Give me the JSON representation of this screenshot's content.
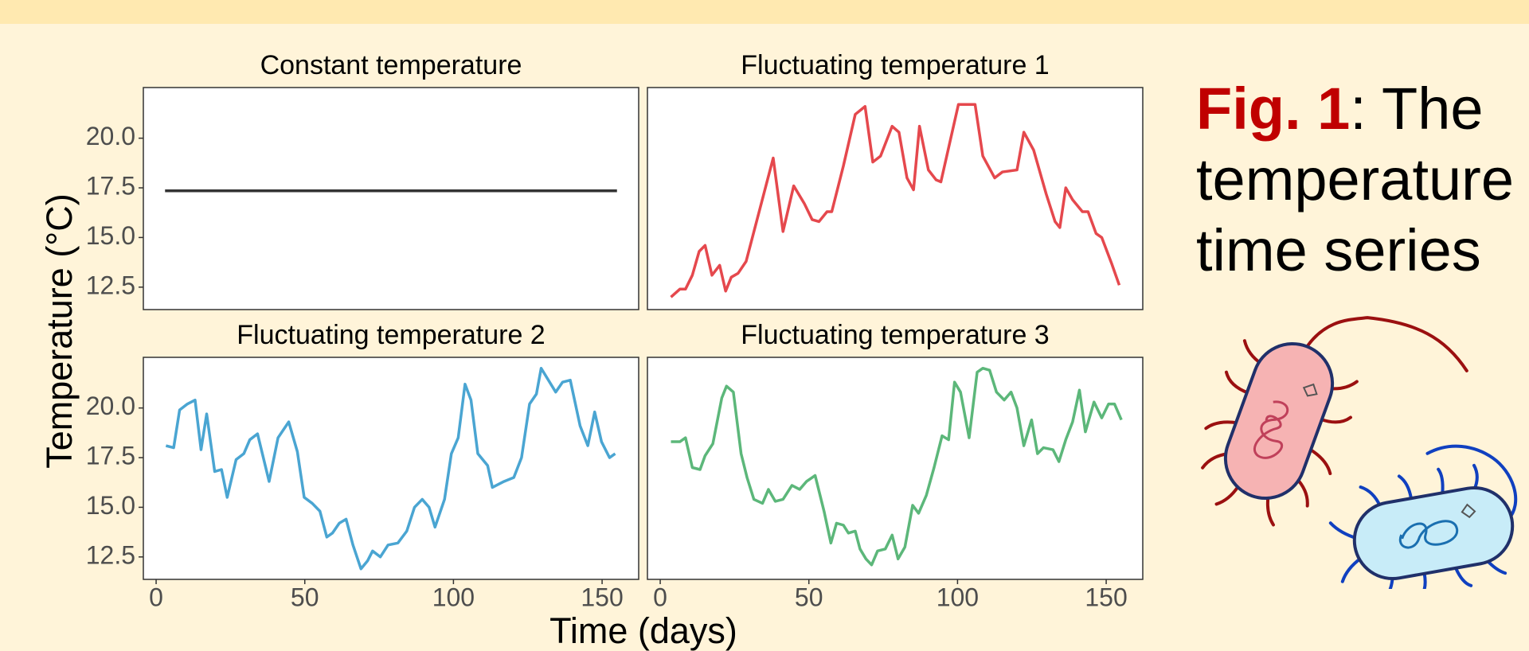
{
  "axes": {
    "ylabel": "Temperature (°C)",
    "xlabel": "Time (days)",
    "xlim": [
      -4.3,
      162.3
    ],
    "ylim": [
      11.37,
      22.55
    ],
    "xticks": [
      0,
      50,
      100,
      150
    ],
    "yticks": [
      {
        "value": 12.5,
        "label": "12.5"
      },
      {
        "value": 15,
        "label": "15.0"
      },
      {
        "value": 17.5,
        "label": "17.5"
      },
      {
        "value": 20,
        "label": "20.0"
      }
    ],
    "ncol": 2
  },
  "caption": {
    "prefix": "Fig. 1",
    "text": ": The temperature time series"
  },
  "chart_data": [
    {
      "type": "line",
      "title": "Constant temperature",
      "color": "#333333",
      "x": [
        3,
        155
      ],
      "values": [
        17.35,
        17.35
      ]
    },
    {
      "type": "line",
      "title": "Fluctuating temperature 1",
      "color": "#e5484d",
      "x": [
        3.6,
        6.6,
        8.5,
        10.8,
        13.1,
        15.1,
        17.4,
        20.0,
        22.0,
        23.9,
        26.2,
        28.9,
        33.8,
        38.0,
        41.3,
        44.9,
        48.5,
        51.1,
        53.4,
        56.1,
        57.7,
        61.6,
        65.6,
        68.9,
        71.5,
        74.1,
        78.0,
        80.3,
        83.0,
        85.2,
        87.2,
        90.2,
        92.8,
        94.4,
        100.3,
        105.9,
        108.5,
        112.5,
        115.1,
        120.0,
        122.3,
        125.6,
        129.8,
        132.8,
        134.4,
        136.4,
        138.7,
        142.0,
        143.9,
        146.6,
        148.5,
        151.8,
        154.4
      ],
      "values": [
        12.0,
        12.4,
        12.4,
        13.1,
        14.3,
        14.6,
        13.1,
        13.6,
        12.3,
        13.0,
        13.2,
        13.8,
        16.6,
        19.0,
        15.3,
        17.6,
        16.7,
        15.9,
        15.8,
        16.3,
        16.3,
        18.6,
        21.2,
        21.6,
        18.8,
        19.1,
        20.6,
        20.3,
        18.0,
        17.4,
        20.6,
        18.4,
        17.9,
        17.8,
        21.7,
        21.7,
        19.1,
        18.0,
        18.3,
        18.4,
        20.3,
        19.4,
        17.2,
        15.8,
        15.5,
        17.5,
        16.9,
        16.3,
        16.3,
        15.2,
        15.0,
        13.7,
        12.6
      ]
    },
    {
      "type": "line",
      "title": "Fluctuating temperature 2",
      "color": "#4aa5d2",
      "x": [
        3.3,
        5.9,
        7.9,
        10.5,
        13.1,
        15.1,
        17.0,
        19.7,
        22.0,
        23.9,
        26.9,
        29.5,
        31.5,
        34.1,
        38.0,
        41.0,
        44.6,
        47.5,
        49.8,
        52.5,
        55.1,
        57.4,
        59.3,
        61.6,
        63.9,
        66.2,
        68.9,
        71.1,
        72.8,
        75.4,
        78.0,
        81.3,
        84.3,
        86.9,
        89.5,
        91.8,
        93.8,
        97.0,
        99.3,
        101.6,
        103.9,
        105.9,
        108.2,
        111.5,
        113.1,
        117.0,
        120.3,
        122.9,
        125.6,
        127.9,
        129.5,
        134.4,
        136.7,
        139.3,
        142.6,
        145.2,
        147.5,
        149.8,
        152.5,
        154.4
      ],
      "values": [
        18.1,
        18.0,
        19.9,
        20.2,
        20.4,
        17.9,
        19.7,
        16.8,
        16.9,
        15.5,
        17.4,
        17.7,
        18.4,
        18.7,
        16.3,
        18.5,
        19.3,
        17.8,
        15.5,
        15.2,
        14.8,
        13.5,
        13.7,
        14.2,
        14.4,
        13.1,
        11.9,
        12.3,
        12.8,
        12.5,
        13.1,
        13.2,
        13.8,
        15.0,
        15.4,
        15.0,
        14.0,
        15.4,
        17.7,
        18.5,
        21.2,
        20.4,
        17.7,
        17.1,
        16.0,
        16.3,
        16.5,
        17.5,
        20.2,
        20.7,
        22.0,
        20.8,
        21.3,
        21.4,
        19.1,
        18.1,
        19.8,
        18.3,
        17.5,
        17.7
      ]
    },
    {
      "type": "line",
      "title": "Fluctuating temperature 3",
      "color": "#5cb77a",
      "x": [
        3.6,
        6.6,
        8.5,
        10.8,
        13.4,
        15.1,
        17.7,
        20.7,
        22.3,
        24.6,
        27.2,
        29.2,
        31.5,
        34.4,
        36.4,
        38.7,
        41.3,
        44.3,
        46.9,
        49.2,
        52.1,
        55.1,
        57.4,
        59.3,
        61.6,
        63.3,
        65.6,
        67.2,
        69.2,
        71.1,
        73.1,
        75.7,
        78.0,
        80.0,
        82.3,
        84.9,
        86.9,
        89.5,
        92.1,
        94.8,
        97.0,
        99.0,
        101.0,
        103.9,
        106.6,
        108.5,
        110.8,
        113.1,
        115.7,
        118.0,
        120.0,
        122.3,
        124.9,
        126.9,
        128.9,
        132.1,
        134.1,
        136.4,
        138.7,
        141.0,
        143.0,
        145.9,
        148.5,
        150.8,
        152.8,
        155.1
      ],
      "values": [
        18.3,
        18.3,
        18.5,
        17.0,
        16.9,
        17.6,
        18.2,
        20.5,
        21.1,
        20.8,
        17.7,
        16.5,
        15.4,
        15.2,
        15.9,
        15.3,
        15.4,
        16.1,
        15.9,
        16.3,
        16.6,
        14.8,
        13.2,
        14.2,
        14.1,
        13.7,
        13.8,
        12.9,
        12.4,
        12.1,
        12.8,
        12.9,
        13.6,
        12.4,
        13.0,
        15.1,
        14.7,
        15.6,
        17.0,
        18.6,
        18.4,
        21.3,
        20.8,
        18.5,
        21.8,
        22.0,
        21.9,
        20.8,
        20.4,
        20.8,
        20.0,
        18.1,
        19.4,
        17.7,
        18.0,
        17.9,
        17.3,
        18.4,
        19.3,
        20.9,
        18.8,
        20.3,
        19.5,
        20.2,
        20.2,
        19.4
      ]
    }
  ]
}
